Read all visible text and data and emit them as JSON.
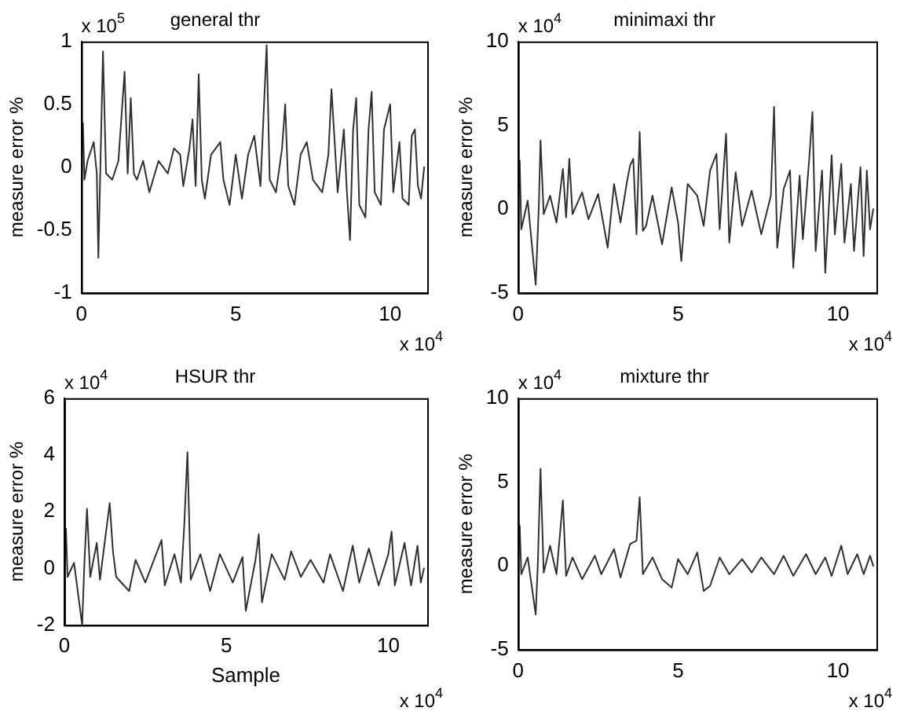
{
  "chart_data": [
    {
      "type": "line",
      "title": "general thr",
      "ylabel": "measure error %",
      "annotations": [
        "x 10$^{5}$",
        "x 10$^{4}$"
      ],
      "xlim": [
        0,
        11.2
      ],
      "xticks": [
        0,
        5,
        10
      ],
      "ylim": [
        -1,
        1
      ],
      "yticks": [
        -1,
        -0.5,
        0,
        0.5,
        1
      ],
      "grid": false,
      "marker": "none",
      "series": [
        {
          "color": "#303030",
          "x": [
            0,
            0.05,
            0.1,
            0.2,
            0.4,
            0.5,
            0.55,
            0.62,
            0.7,
            0.8,
            1.0,
            1.2,
            1.4,
            1.5,
            1.6,
            1.7,
            1.8,
            2.0,
            2.2,
            2.5,
            2.8,
            3.0,
            3.2,
            3.3,
            3.5,
            3.6,
            3.7,
            3.8,
            3.9,
            4.0,
            4.2,
            4.5,
            4.6,
            4.8,
            5.0,
            5.2,
            5.4,
            5.6,
            5.8,
            6.0,
            6.1,
            6.3,
            6.5,
            6.6,
            6.7,
            6.9,
            7.1,
            7.3,
            7.5,
            7.8,
            8.0,
            8.1,
            8.3,
            8.5,
            8.6,
            8.7,
            8.8,
            8.9,
            9.0,
            9.2,
            9.3,
            9.4,
            9.5,
            9.7,
            9.8,
            10.0,
            10.1,
            10.3,
            10.4,
            10.6,
            10.7,
            10.8,
            10.9,
            11.0,
            11.1
          ],
          "values": [
            0,
            0.35,
            -0.1,
            0.05,
            0.2,
            -0.05,
            -0.72,
            0.05,
            0.92,
            -0.05,
            -0.1,
            0.05,
            0.76,
            -0.05,
            0.55,
            -0.05,
            -0.1,
            0.05,
            -0.2,
            0.05,
            -0.05,
            0.15,
            0.1,
            -0.15,
            0.15,
            0.38,
            -0.15,
            0.74,
            -0.1,
            -0.25,
            0.1,
            0.2,
            -0.1,
            -0.3,
            0.1,
            -0.25,
            0.1,
            0.25,
            -0.15,
            0.97,
            -0.1,
            -0.2,
            0.15,
            0.5,
            -0.15,
            -0.3,
            0.1,
            0.2,
            -0.1,
            -0.2,
            0.1,
            0.62,
            -0.2,
            0.3,
            -0.2,
            -0.58,
            0.3,
            0.55,
            -0.3,
            -0.4,
            0.3,
            0.6,
            -0.2,
            -0.3,
            0.3,
            0.5,
            -0.2,
            0.2,
            -0.25,
            -0.3,
            0.25,
            0.3,
            -0.15,
            -0.25,
            0
          ]
        }
      ]
    },
    {
      "type": "line",
      "title": "minimaxi thr",
      "ylabel": "measure error %",
      "annotations": [
        "x 10$^{4}$",
        "x 10$^{4}$"
      ],
      "xlim": [
        0,
        11.2
      ],
      "xticks": [
        0,
        5,
        10
      ],
      "ylim": [
        -5,
        10
      ],
      "yticks": [
        -5,
        0,
        5,
        10
      ],
      "grid": false,
      "marker": "none",
      "series": [
        {
          "color": "#303030",
          "x": [
            0,
            0.05,
            0.1,
            0.3,
            0.55,
            0.65,
            0.7,
            0.8,
            1.0,
            1.2,
            1.4,
            1.5,
            1.6,
            1.7,
            2.0,
            2.2,
            2.5,
            2.8,
            3.0,
            3.2,
            3.4,
            3.5,
            3.6,
            3.7,
            3.8,
            3.9,
            4.0,
            4.2,
            4.5,
            4.8,
            5.0,
            5.1,
            5.3,
            5.6,
            5.8,
            6.0,
            6.2,
            6.3,
            6.5,
            6.6,
            6.8,
            7.0,
            7.3,
            7.6,
            7.9,
            8.0,
            8.1,
            8.3,
            8.5,
            8.6,
            8.8,
            8.9,
            9.1,
            9.2,
            9.3,
            9.5,
            9.6,
            9.8,
            9.9,
            10.1,
            10.2,
            10.4,
            10.5,
            10.7,
            10.8,
            10.9,
            11.0,
            11.1
          ],
          "values": [
            0,
            2.9,
            -1.2,
            0.5,
            -4.5,
            0.3,
            4.1,
            -0.3,
            0.8,
            -0.8,
            2.4,
            -0.5,
            3.0,
            -0.3,
            1.0,
            -0.6,
            0.9,
            -2.3,
            1.5,
            -0.8,
            1.6,
            2.6,
            3.0,
            -1.5,
            4.6,
            -1.3,
            -1.0,
            0.8,
            -2.1,
            1.3,
            -0.8,
            -3.1,
            1.5,
            0.8,
            -1.0,
            2.3,
            3.3,
            -1.2,
            4.5,
            -2.0,
            2.2,
            -1.0,
            1.1,
            -1.5,
            0.8,
            6.1,
            -2.3,
            1.2,
            2.3,
            -3.5,
            2.0,
            -1.8,
            3.0,
            5.8,
            -2.5,
            2.3,
            -3.8,
            3.2,
            -1.5,
            2.7,
            -2.0,
            1.5,
            -2.5,
            2.5,
            -2.8,
            2.3,
            -1.2,
            0
          ]
        }
      ]
    },
    {
      "type": "line",
      "title": "HSUR thr",
      "xlabel": "Sample",
      "ylabel": "measure error %",
      "annotations": [
        "x 10$^{4}$",
        "x 10$^{4}$"
      ],
      "xlim": [
        0,
        11.2
      ],
      "xticks": [
        0,
        5,
        10
      ],
      "ylim": [
        -2,
        6
      ],
      "yticks": [
        -2,
        0,
        2,
        4,
        6
      ],
      "grid": false,
      "marker": "none",
      "series": [
        {
          "color": "#303030",
          "x": [
            0,
            0.05,
            0.1,
            0.3,
            0.55,
            0.62,
            0.7,
            0.8,
            1.0,
            1.1,
            1.4,
            1.5,
            1.6,
            2.0,
            2.2,
            2.5,
            2.8,
            3.0,
            3.1,
            3.4,
            3.6,
            3.7,
            3.8,
            3.9,
            4.2,
            4.5,
            4.8,
            5.2,
            5.5,
            5.6,
            5.9,
            6.0,
            6.1,
            6.4,
            6.8,
            7.0,
            7.3,
            7.6,
            8.0,
            8.2,
            8.6,
            8.9,
            9.1,
            9.4,
            9.7,
            10.0,
            10.1,
            10.2,
            10.5,
            10.7,
            10.9,
            11.0,
            11.1
          ],
          "values": [
            0,
            1.4,
            -0.3,
            0.2,
            -2.0,
            0.2,
            2.1,
            -0.3,
            0.9,
            -0.4,
            2.3,
            0.6,
            -0.3,
            -0.8,
            0.3,
            -0.5,
            0.4,
            1.0,
            -0.6,
            0.5,
            -0.5,
            1.5,
            4.1,
            -0.4,
            0.5,
            -0.8,
            0.5,
            -0.5,
            0.4,
            -1.5,
            0.3,
            1.2,
            -1.2,
            0.5,
            -0.4,
            0.6,
            -0.3,
            0.3,
            -0.5,
            0.5,
            -0.8,
            0.8,
            -0.5,
            0.7,
            -0.6,
            0.5,
            1.3,
            -0.6,
            0.9,
            -0.6,
            0.8,
            -0.5,
            0
          ]
        }
      ]
    },
    {
      "type": "line",
      "title": "mixture thr",
      "ylabel": "measure error %",
      "annotations": [
        "x 10$^{4}$",
        "x 10$^{4}$"
      ],
      "xlim": [
        0,
        11.2
      ],
      "xticks": [
        0,
        5,
        10
      ],
      "ylim": [
        -5,
        10
      ],
      "yticks": [
        -5,
        0,
        5,
        10
      ],
      "grid": false,
      "marker": "none",
      "series": [
        {
          "color": "#303030",
          "x": [
            0,
            0.05,
            0.1,
            0.3,
            0.55,
            0.62,
            0.7,
            0.8,
            1.0,
            1.2,
            1.4,
            1.5,
            1.7,
            2.0,
            2.4,
            2.6,
            3.0,
            3.2,
            3.5,
            3.7,
            3.8,
            3.9,
            4.2,
            4.5,
            4.8,
            5.0,
            5.3,
            5.6,
            5.8,
            6.0,
            6.3,
            6.6,
            7.0,
            7.3,
            7.6,
            8.0,
            8.3,
            8.6,
            9.0,
            9.3,
            9.6,
            9.8,
            10.1,
            10.3,
            10.6,
            10.8,
            11.0,
            11.1
          ],
          "values": [
            0,
            2.4,
            -0.5,
            0.5,
            -2.9,
            0.3,
            5.8,
            -0.4,
            1.2,
            -0.5,
            3.9,
            -0.6,
            0.5,
            -0.8,
            0.6,
            -0.5,
            1.0,
            -0.7,
            1.3,
            1.5,
            4.1,
            -0.5,
            0.5,
            -0.8,
            -1.3,
            0.4,
            -0.5,
            0.8,
            -1.5,
            -1.2,
            0.5,
            -0.5,
            0.4,
            -0.4,
            0.5,
            -0.5,
            0.6,
            -0.6,
            0.7,
            -0.5,
            0.5,
            -0.6,
            1.2,
            -0.5,
            0.7,
            -0.5,
            0.6,
            0
          ]
        }
      ]
    }
  ]
}
